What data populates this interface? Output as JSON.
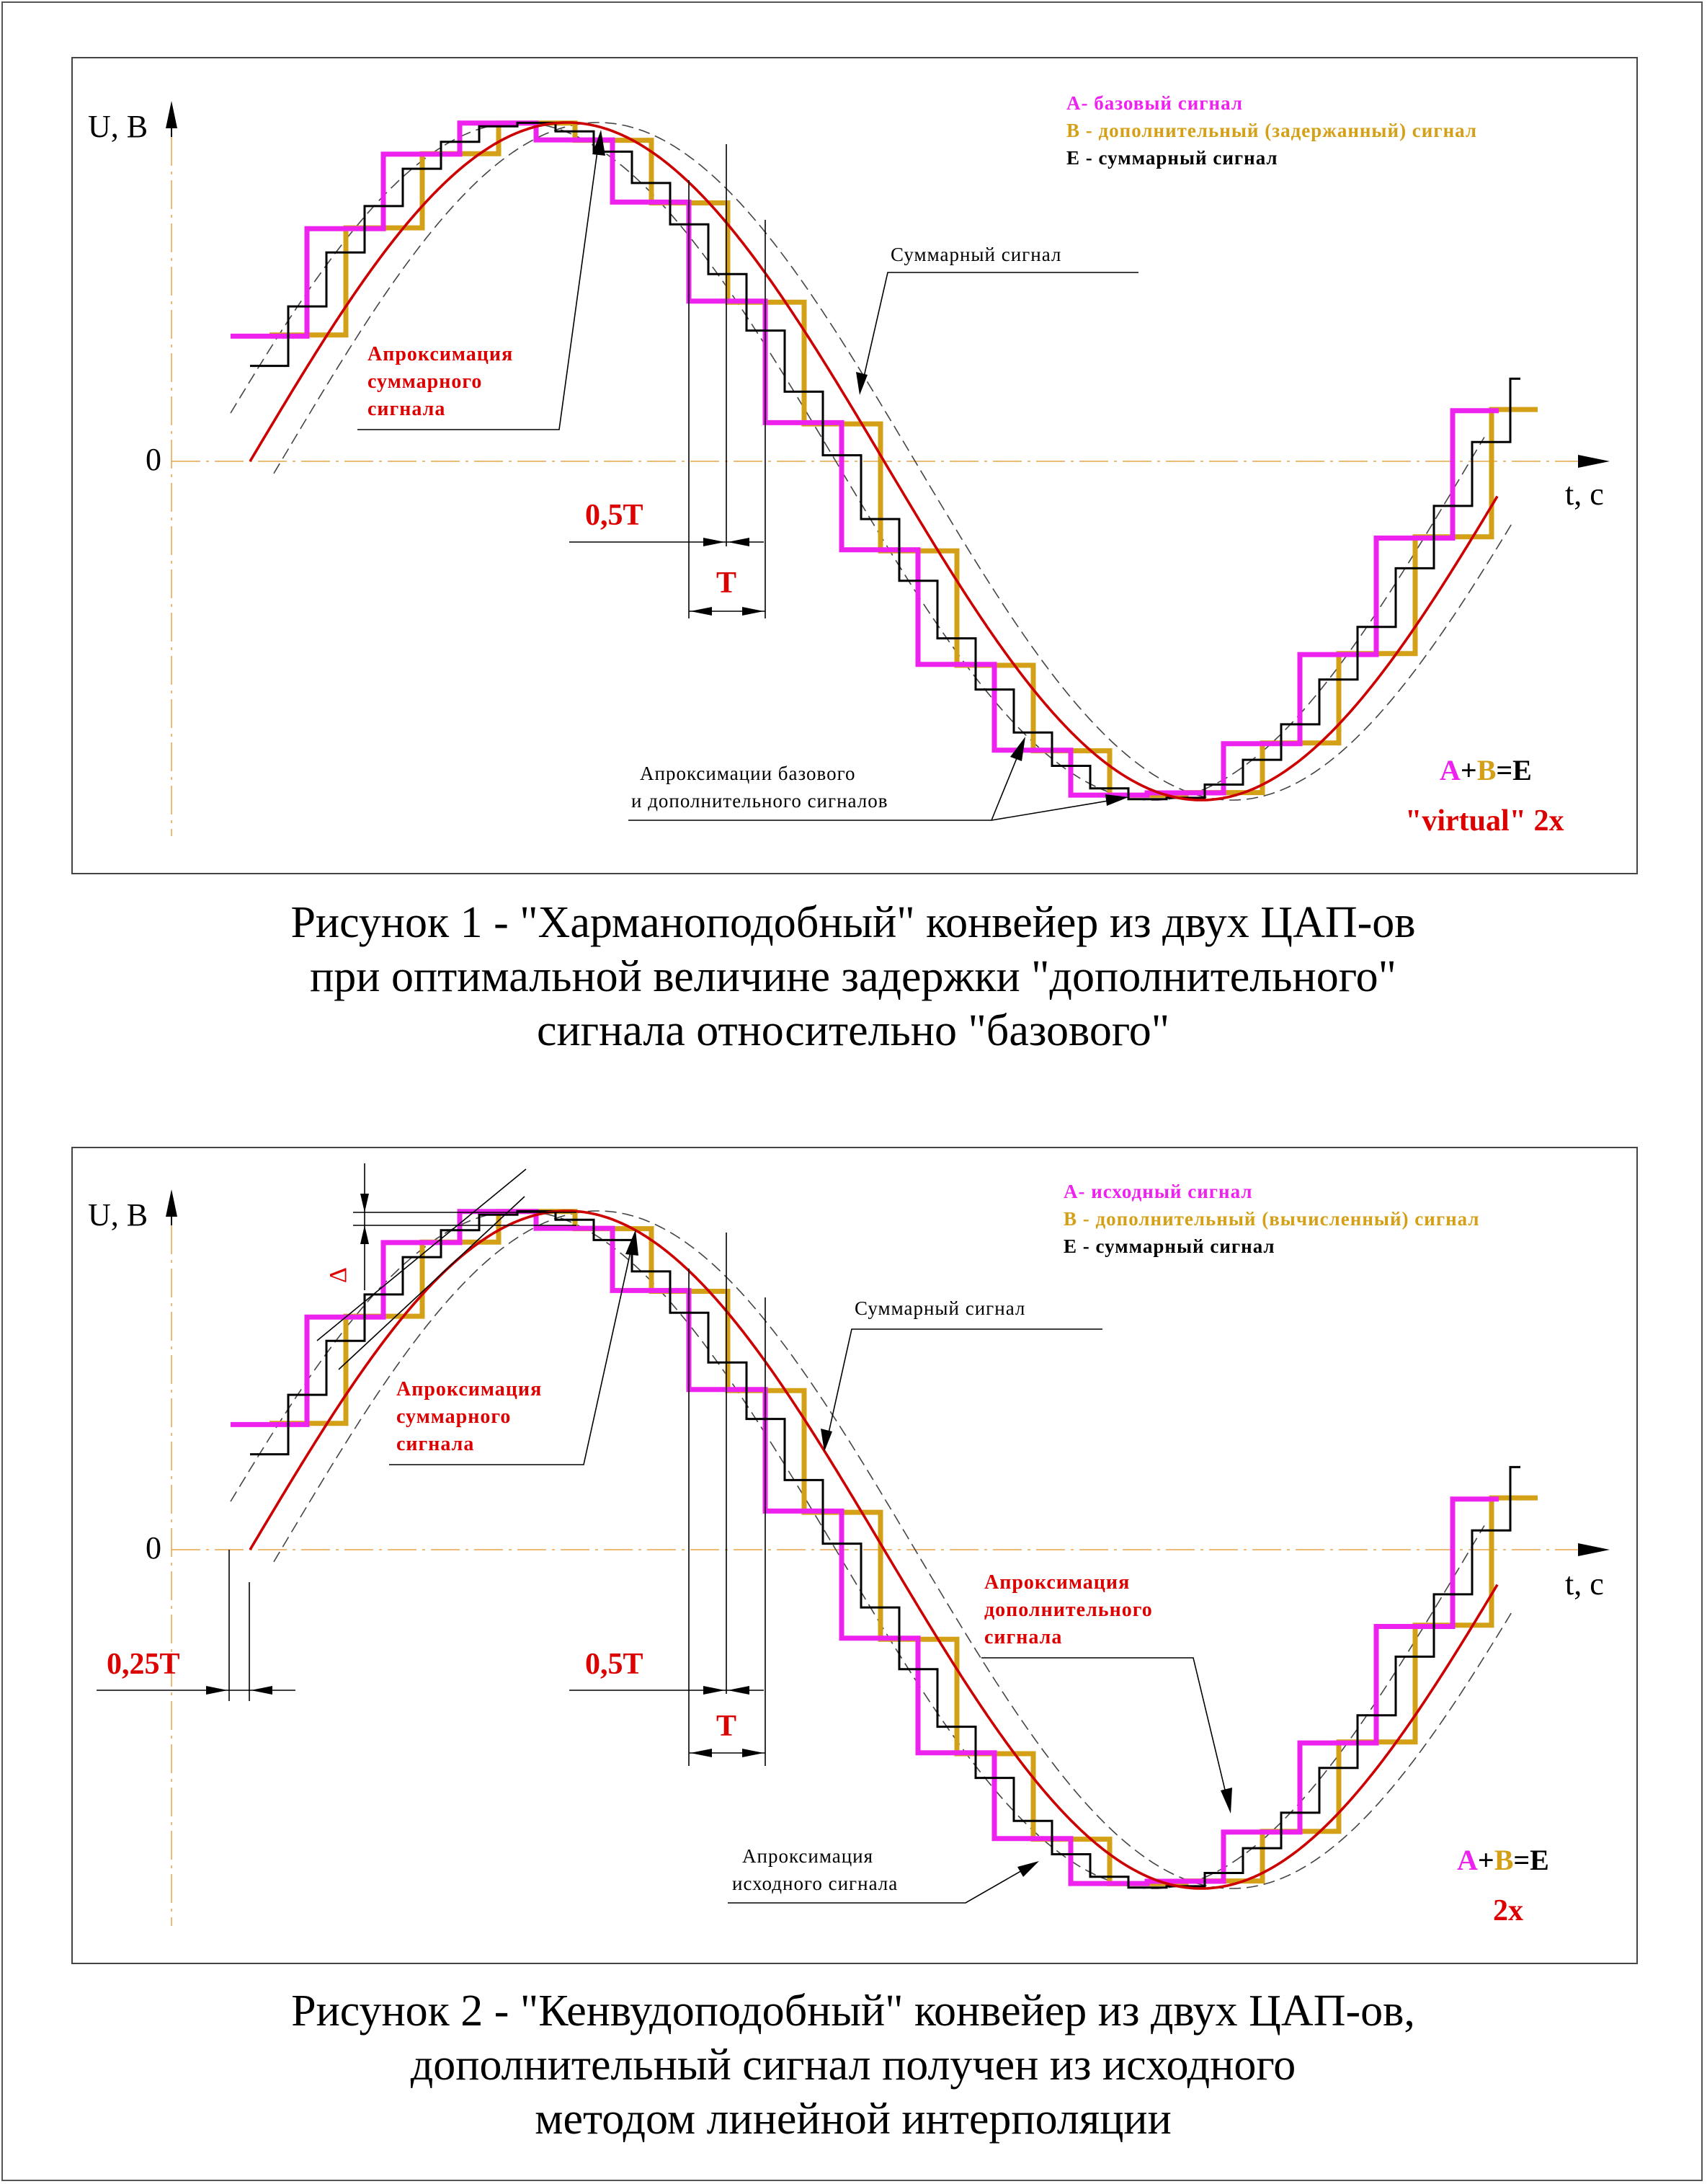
{
  "figure1": {
    "y_axis_label": "U, В",
    "x_axis_label": "t, c",
    "zero_label": "0",
    "legend": {
      "a": "А- базовый сигнал",
      "b": "В - дополнительный (задержанный) сигнал",
      "e": "Е - суммарный сигнал"
    },
    "note_sum_signal": "Суммарный сигнал",
    "note_approx_sum": [
      "Апроксимация",
      "суммарного",
      "сигнала"
    ],
    "note_approx_base": [
      "Апроксимации базового",
      "и дополнительного сигналов"
    ],
    "dim_half_T": "0,5T",
    "dim_T": "T",
    "formula": {
      "a": "A",
      "plus": "+",
      "b": "B",
      "eq": "=E"
    },
    "badge": "\"virtual\" 2x",
    "caption": [
      "Рисунок 1 - \"Хармaноподобный\" конвейер из двух ЦАП-ов",
      "при оптимальной величине задержки \"дополнительного\"",
      "сигнала относительно \"базового\""
    ]
  },
  "figure2": {
    "y_axis_label": "U, В",
    "x_axis_label": "t, c",
    "zero_label": "0",
    "delta_label": "Δ",
    "legend": {
      "a": "А- исходный сигнал",
      "b": "В - дополнительный (вычисленный) сигнал",
      "e": "Е - суммарный сигнал"
    },
    "note_sum_signal": "Суммарный сигнал",
    "note_approx_sum": [
      "Апроксимация",
      "суммарного",
      "сигнала"
    ],
    "note_approx_add": [
      "Апроксимация",
      "дополнительного",
      "сигнала"
    ],
    "note_approx_source": [
      "Апроксимация",
      "исходного сигнала"
    ],
    "dim_quarter_T": "0,25T",
    "dim_half_T": "0,5T",
    "dim_T": "T",
    "formula": {
      "a": "A",
      "plus": "+",
      "b": "B",
      "eq": "=E"
    },
    "badge": "2x",
    "caption": [
      "Рисунок 2 - \"Кенвудоподобный\" конвейер из двух ЦАП-ов,",
      "дополнительный сигнал получен из исходного",
      "методом линейной интерполяции"
    ]
  },
  "colors": {
    "signal_a": "#ee22ee",
    "signal_b": "#d4a017",
    "signal_e": "#000000",
    "approximation": "#cc0000",
    "label_red": "#dd0000",
    "zero_line": "#e5a54a"
  }
}
